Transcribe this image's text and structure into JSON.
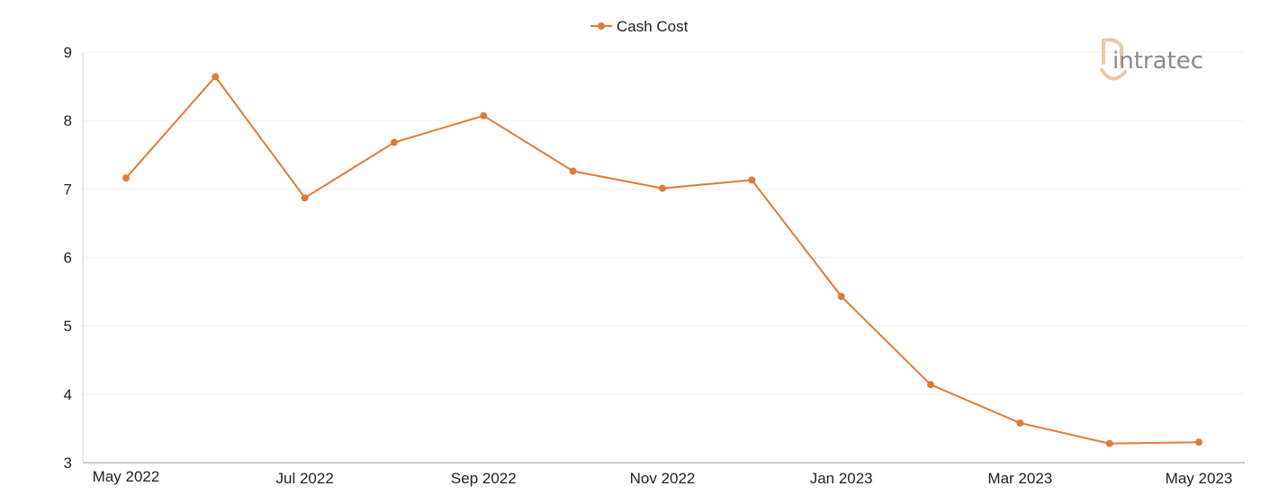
{
  "chart_data": {
    "type": "line",
    "title": "",
    "xlabel": "",
    "ylabel": "",
    "x": [
      "May 2022",
      "Jun 2022",
      "Jul 2022",
      "Aug 2022",
      "Sep 2022",
      "Oct 2022",
      "Nov 2022",
      "Dec 2022",
      "Jan 2023",
      "Feb 2023",
      "Mar 2023",
      "Apr 2023",
      "May 2023"
    ],
    "x_tick_labels": [
      "May 2022",
      "Jul 2022",
      "Sep 2022",
      "Nov 2022",
      "Jan 2023",
      "Mar 2023",
      "May 2023"
    ],
    "ylim": [
      3,
      9
    ],
    "y_ticks": [
      3,
      4,
      5,
      6,
      7,
      8,
      9
    ],
    "grid": true,
    "legend_position": "top-center",
    "series": [
      {
        "name": "Cash Cost",
        "color": "#e07b39",
        "values": [
          7.16,
          8.64,
          6.87,
          7.68,
          8.07,
          7.26,
          7.01,
          7.13,
          5.43,
          4.14,
          3.58,
          3.28,
          3.3
        ]
      }
    ]
  },
  "branding": {
    "logo_text": "intratec",
    "logo_color": "#8a8a8a",
    "logo_accent": "#e8c9a9"
  }
}
